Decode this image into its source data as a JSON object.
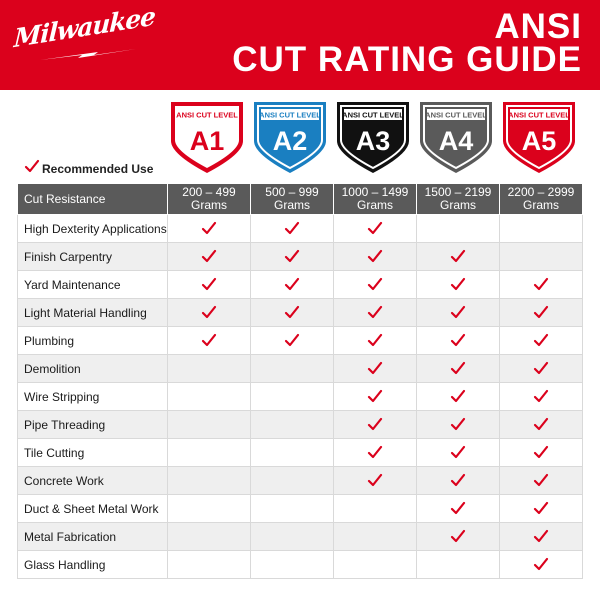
{
  "brand": {
    "logo_text": "Milwaukee",
    "accent_color": "#db011c"
  },
  "header": {
    "title_line1": "ANSI",
    "title_line2": "CUT RATING GUIDE"
  },
  "levels": [
    {
      "caption": "ANSI CUT LEVEL",
      "code": "A1",
      "color": "#ffffff",
      "text_color": "#db011c",
      "border": "#db011c"
    },
    {
      "caption": "ANSI CUT LEVEL",
      "code": "A2",
      "color": "#1a7fc1",
      "text_color": "#ffffff",
      "border": "#1a7fc1"
    },
    {
      "caption": "ANSI CUT LEVEL",
      "code": "A3",
      "color": "#111111",
      "text_color": "#ffffff",
      "border": "#111111"
    },
    {
      "caption": "ANSI CUT LEVEL",
      "code": "A4",
      "color": "#5a5a5a",
      "text_color": "#ffffff",
      "border": "#5a5a5a"
    },
    {
      "caption": "ANSI CUT LEVEL",
      "code": "A5",
      "color": "#db011c",
      "text_color": "#ffffff",
      "border": "#db011c"
    }
  ],
  "legend": {
    "icon": "check-icon",
    "label": "Recommended Use"
  },
  "table": {
    "header_label": "Cut Resistance",
    "ranges": [
      {
        "line1": "200 – 499",
        "line2": "Grams"
      },
      {
        "line1": "500 – 999",
        "line2": "Grams"
      },
      {
        "line1": "1000 – 1499",
        "line2": "Grams"
      },
      {
        "line1": "1500 – 2199",
        "line2": "Grams"
      },
      {
        "line1": "2200 – 2999",
        "line2": "Grams"
      }
    ],
    "rows": [
      {
        "label": "High Dexterity Applications",
        "marks": [
          true,
          true,
          true,
          false,
          false
        ]
      },
      {
        "label": "Finish Carpentry",
        "marks": [
          true,
          true,
          true,
          true,
          false
        ]
      },
      {
        "label": "Yard Maintenance",
        "marks": [
          true,
          true,
          true,
          true,
          true
        ]
      },
      {
        "label": "Light Material Handling",
        "marks": [
          true,
          true,
          true,
          true,
          true
        ]
      },
      {
        "label": "Plumbing",
        "marks": [
          true,
          true,
          true,
          true,
          true
        ]
      },
      {
        "label": "Demolition",
        "marks": [
          false,
          false,
          true,
          true,
          true
        ]
      },
      {
        "label": "Wire Stripping",
        "marks": [
          false,
          false,
          true,
          true,
          true
        ]
      },
      {
        "label": "Pipe Threading",
        "marks": [
          false,
          false,
          true,
          true,
          true
        ]
      },
      {
        "label": "Tile Cutting",
        "marks": [
          false,
          false,
          true,
          true,
          true
        ]
      },
      {
        "label": "Concrete Work",
        "marks": [
          false,
          false,
          true,
          true,
          true
        ]
      },
      {
        "label": "Duct & Sheet Metal Work",
        "marks": [
          false,
          false,
          false,
          true,
          true
        ]
      },
      {
        "label": "Metal Fabrication",
        "marks": [
          false,
          false,
          false,
          true,
          true
        ]
      },
      {
        "label": "Glass Handling",
        "marks": [
          false,
          false,
          false,
          false,
          true
        ]
      }
    ]
  }
}
